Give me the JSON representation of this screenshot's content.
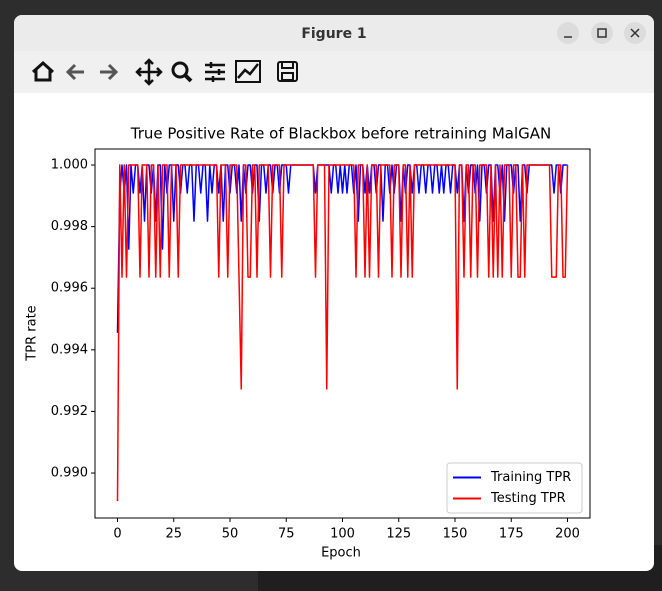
{
  "window": {
    "title": "Figure 1"
  },
  "chart_data": {
    "type": "line",
    "title": "True Positive Rate of Blackbox before retraining MalGAN",
    "x_label": "Epoch",
    "y_label": "TPR rate",
    "xlim": [
      -10,
      210
    ],
    "xticks": [
      0,
      25,
      50,
      75,
      100,
      125,
      150,
      175,
      200
    ],
    "ylim": [
      0.98854,
      1.00052
    ],
    "yticks": [
      {
        "value": 0.99,
        "label": "0.990"
      },
      0.992,
      0.994,
      0.996,
      0.998,
      {
        "value": 1,
        "label": "1.000"
      }
    ],
    "legend": "lower right",
    "x": [
      0,
      1,
      2,
      3,
      4,
      5,
      6,
      7,
      8,
      9,
      10,
      11,
      12,
      13,
      14,
      15,
      16,
      17,
      18,
      19,
      20,
      21,
      22,
      23,
      24,
      25,
      26,
      27,
      28,
      29,
      30,
      31,
      32,
      33,
      34,
      35,
      36,
      37,
      38,
      39,
      40,
      41,
      42,
      43,
      44,
      45,
      46,
      47,
      48,
      49,
      50,
      51,
      52,
      53,
      54,
      55,
      56,
      57,
      58,
      59,
      60,
      61,
      62,
      63,
      64,
      65,
      66,
      67,
      68,
      69,
      70,
      71,
      72,
      73,
      74,
      75,
      76,
      77,
      78,
      79,
      80,
      81,
      82,
      83,
      84,
      85,
      86,
      87,
      88,
      89,
      90,
      91,
      92,
      93,
      94,
      95,
      96,
      97,
      98,
      99,
      100,
      101,
      102,
      103,
      104,
      105,
      106,
      107,
      108,
      109,
      110,
      111,
      112,
      113,
      114,
      115,
      116,
      117,
      118,
      119,
      120,
      121,
      122,
      123,
      124,
      125,
      126,
      127,
      128,
      129,
      130,
      131,
      132,
      133,
      134,
      135,
      136,
      137,
      138,
      139,
      140,
      141,
      142,
      143,
      144,
      145,
      146,
      147,
      148,
      149,
      150,
      151,
      152,
      153,
      154,
      155,
      156,
      157,
      158,
      159,
      160,
      161,
      162,
      163,
      164,
      165,
      166,
      167,
      168,
      169,
      170,
      171,
      172,
      173,
      174,
      175,
      176,
      177,
      178,
      179,
      180,
      181,
      182,
      183,
      184,
      185,
      186,
      187,
      188,
      189,
      190,
      191,
      192,
      193,
      194,
      195,
      196,
      197,
      198,
      199,
      200
    ],
    "series": [
      {
        "name": "Training TPR",
        "color": "#0000ff",
        "values": [
          0.99455,
          0.99909,
          1,
          0.99909,
          1,
          0.99727,
          1,
          0.99909,
          1,
          1,
          0.99909,
          1,
          0.99818,
          1,
          1,
          0.99909,
          1,
          0.99818,
          1,
          1,
          0.99727,
          1,
          0.99909,
          1,
          1,
          0.99818,
          1,
          1,
          0.99909,
          1,
          1,
          0.99909,
          1,
          1,
          0.99818,
          1,
          1,
          0.99909,
          1,
          1,
          0.99818,
          1,
          0.99909,
          1,
          1,
          0.99909,
          1,
          0.99818,
          1,
          1,
          0.99909,
          1,
          1,
          0.99909,
          1,
          0.99818,
          1,
          0.99909,
          1,
          1,
          0.99909,
          1,
          1,
          0.99818,
          1,
          1,
          0.99909,
          1,
          1,
          0.99909,
          1,
          1,
          0.99909,
          1,
          1,
          1,
          0.99909,
          1,
          1,
          1,
          1,
          1,
          1,
          1,
          1,
          1,
          1,
          1,
          0.99909,
          1,
          1,
          1,
          1,
          1,
          1,
          0.99909,
          1,
          1,
          0.99909,
          1,
          0.99909,
          1,
          0.99909,
          1,
          1,
          0.99909,
          1,
          0.99818,
          1,
          1,
          0.99909,
          1,
          0.99909,
          1,
          1,
          0.99909,
          1,
          1,
          0.99818,
          1,
          1,
          0.99909,
          1,
          0.99909,
          1,
          1,
          0.99818,
          1,
          0.99909,
          1,
          1,
          0.99909,
          1,
          1,
          0.99909,
          1,
          1,
          0.99909,
          1,
          1,
          0.99909,
          1,
          1,
          0.99909,
          1,
          0.99909,
          1,
          1,
          0.99909,
          1,
          1,
          0.99909,
          1,
          1,
          0.99818,
          1,
          0.99909,
          1,
          1,
          0.99909,
          1,
          0.99818,
          1,
          1,
          0.99909,
          1,
          1,
          0.99818,
          1,
          1,
          0.99909,
          1,
          0.99818,
          1,
          1,
          1,
          0.99909,
          1,
          1,
          0.99818,
          1,
          1,
          0.99909,
          1,
          1,
          1,
          1,
          1,
          1,
          1,
          1,
          1,
          1,
          1,
          0.99909,
          1,
          1,
          0.99909,
          1,
          1,
          1
        ]
      },
      {
        "name": "Testing TPR",
        "color": "#ff0000",
        "values": [
          0.98909,
          1,
          0.99636,
          1,
          0.99636,
          1,
          1,
          1,
          1,
          1,
          0.99636,
          1,
          1,
          1,
          0.99636,
          1,
          1,
          0.99636,
          1,
          0.99636,
          1,
          1,
          1,
          0.99636,
          1,
          1,
          1,
          0.99636,
          1,
          1,
          1,
          1,
          1,
          1,
          1,
          1,
          1,
          1,
          1,
          1,
          1,
          1,
          1,
          1,
          1,
          0.99636,
          1,
          1,
          1,
          0.99636,
          1,
          1,
          1,
          1,
          0.99636,
          0.99273,
          1,
          1,
          0.99636,
          0.99636,
          1,
          1,
          0.99636,
          1,
          1,
          1,
          1,
          1,
          0.99636,
          1,
          1,
          1,
          1,
          0.99636,
          1,
          1,
          1,
          1,
          1,
          1,
          1,
          1,
          1,
          1,
          1,
          1,
          1,
          1,
          0.99636,
          1,
          1,
          1,
          1,
          0.99273,
          1,
          1,
          1,
          1,
          1,
          1,
          1,
          1,
          1,
          1,
          1,
          1,
          0.99636,
          1,
          1,
          1,
          0.99636,
          1,
          0.99636,
          1,
          1,
          1,
          0.99636,
          1,
          1,
          1,
          1,
          1,
          0.99636,
          1,
          1,
          1,
          0.99636,
          1,
          1,
          0.99636,
          1,
          0.99636,
          1,
          1,
          1,
          1,
          1,
          1,
          1,
          1,
          1,
          1,
          1,
          1,
          1,
          1,
          1,
          1,
          1,
          1,
          1,
          0.99273,
          1,
          1,
          0.99636,
          1,
          1,
          0.99636,
          1,
          1,
          0.99636,
          1,
          1,
          1,
          1,
          0.99636,
          1,
          0.99636,
          1,
          0.99636,
          1,
          0.99636,
          1,
          1,
          1,
          0.99636,
          1,
          1,
          0.99636,
          0.99636,
          1,
          0.99636,
          1,
          1,
          1,
          1,
          1,
          1,
          1,
          1,
          1,
          1,
          1,
          0.99636,
          0.99636,
          0.99636,
          1,
          1,
          0.99636,
          0.99636,
          1
        ]
      }
    ]
  }
}
